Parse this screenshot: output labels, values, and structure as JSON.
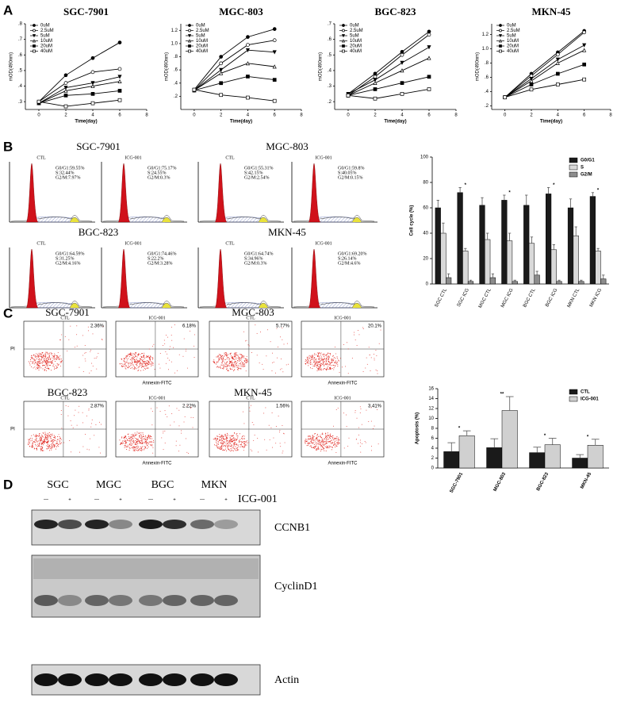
{
  "panels": [
    "A",
    "B",
    "C",
    "D"
  ],
  "chart_data": [
    {
      "type": "line",
      "title": "SGC-7901",
      "x_label": "Time(day)",
      "y_label": "mOD(490nm)",
      "x": [
        0,
        2,
        4,
        6
      ],
      "xlim": [
        -1,
        8
      ],
      "xticks": [
        0,
        2,
        4,
        6,
        8
      ],
      "ylim": [
        0.25,
        0.8
      ],
      "yticks": [
        {
          "value": 0.3,
          "label": ".3"
        },
        {
          "value": 0.4,
          "label": ".4"
        },
        {
          "value": 0.5,
          "label": ".5"
        },
        {
          "value": 0.6,
          "label": ".6"
        },
        {
          "value": 0.7,
          "label": ".7"
        },
        {
          "value": 0.8,
          "label": ".8"
        }
      ],
      "legend": "upper left",
      "series": [
        {
          "name": "0uM",
          "color": "#000000",
          "marker": "circle",
          "filled": true,
          "values": [
            0.3,
            0.47,
            0.58,
            0.68
          ]
        },
        {
          "name": "2.5uM",
          "color": "#000000",
          "marker": "circle",
          "filled": false,
          "values": [
            0.3,
            0.42,
            0.49,
            0.51
          ]
        },
        {
          "name": "5uM",
          "color": "#000000",
          "marker": "triangle-down",
          "filled": true,
          "values": [
            0.29,
            0.39,
            0.42,
            0.46
          ]
        },
        {
          "name": "10uM",
          "color": "#000000",
          "marker": "triangle",
          "filled": false,
          "values": [
            0.29,
            0.37,
            0.4,
            0.43
          ]
        },
        {
          "name": "20uM",
          "color": "#000000",
          "marker": "square",
          "filled": true,
          "values": [
            0.29,
            0.34,
            0.35,
            0.37
          ]
        },
        {
          "name": "40uM",
          "color": "#000000",
          "marker": "square",
          "filled": false,
          "values": [
            0.3,
            0.27,
            0.29,
            0.31
          ]
        }
      ]
    },
    {
      "type": "line",
      "title": "MGC-803",
      "x_label": "Time(day)",
      "y_label": "mOD(490nm)",
      "x": [
        0,
        2,
        4,
        6
      ],
      "xlim": [
        -1,
        8
      ],
      "xticks": [
        0,
        2,
        4,
        6,
        8
      ],
      "ylim": [
        0,
        1.3
      ],
      "yticks": [
        {
          "value": 0.2,
          "label": ".2"
        },
        {
          "value": 0.4,
          "label": ".4"
        },
        {
          "value": 0.6,
          "label": ".6"
        },
        {
          "value": 0.8,
          "label": ".8"
        },
        {
          "value": 1,
          "label": "1.0"
        },
        1.2
      ],
      "legend": "upper left",
      "series": [
        {
          "name": "0uM",
          "color": "#000000",
          "marker": "circle",
          "filled": true,
          "values": [
            0.3,
            0.8,
            1.1,
            1.22
          ]
        },
        {
          "name": "2.5uM",
          "color": "#000000",
          "marker": "circle",
          "filled": false,
          "values": [
            0.29,
            0.7,
            0.98,
            1.05
          ]
        },
        {
          "name": "5uM",
          "color": "#000000",
          "marker": "triangle-down",
          "filled": true,
          "values": [
            0.29,
            0.6,
            0.9,
            0.87
          ]
        },
        {
          "name": "10uM",
          "color": "#000000",
          "marker": "triangle",
          "filled": false,
          "values": [
            0.29,
            0.55,
            0.7,
            0.65
          ]
        },
        {
          "name": "20uM",
          "color": "#000000",
          "marker": "square",
          "filled": true,
          "values": [
            0.29,
            0.4,
            0.5,
            0.45
          ]
        },
        {
          "name": "40uM",
          "color": "#000000",
          "marker": "square",
          "filled": false,
          "values": [
            0.3,
            0.22,
            0.18,
            0.13
          ]
        }
      ]
    },
    {
      "type": "line",
      "title": "BGC-823",
      "x_label": "Time(day)",
      "y_label": "mOD(490nm)",
      "x": [
        0,
        2,
        4,
        6
      ],
      "xlim": [
        -1,
        8
      ],
      "xticks": [
        0,
        2,
        4,
        6,
        8
      ],
      "ylim": [
        0.15,
        0.7
      ],
      "yticks": [
        {
          "value": 0.2,
          "label": ".2"
        },
        {
          "value": 0.3,
          "label": ".3"
        },
        {
          "value": 0.4,
          "label": ".4"
        },
        {
          "value": 0.5,
          "label": ".5"
        },
        {
          "value": 0.6,
          "label": ".6"
        },
        {
          "value": 0.7,
          "label": ".7"
        }
      ],
      "legend": "upper left",
      "series": [
        {
          "name": "0uM",
          "color": "#000000",
          "marker": "circle",
          "filled": true,
          "values": [
            0.25,
            0.38,
            0.52,
            0.65
          ]
        },
        {
          "name": "2.5uM",
          "color": "#000000",
          "marker": "circle",
          "filled": false,
          "values": [
            0.24,
            0.36,
            0.5,
            0.63
          ]
        },
        {
          "name": "5uM",
          "color": "#000000",
          "marker": "triangle-down",
          "filled": true,
          "values": [
            0.25,
            0.34,
            0.45,
            0.55
          ]
        },
        {
          "name": "10uM",
          "color": "#000000",
          "marker": "triangle",
          "filled": false,
          "values": [
            0.24,
            0.32,
            0.4,
            0.48
          ]
        },
        {
          "name": "20uM",
          "color": "#000000",
          "marker": "square",
          "filled": true,
          "values": [
            0.24,
            0.28,
            0.32,
            0.36
          ]
        },
        {
          "name": "40uM",
          "color": "#000000",
          "marker": "square",
          "filled": false,
          "values": [
            0.24,
            0.22,
            0.25,
            0.28
          ]
        }
      ]
    },
    {
      "type": "line",
      "title": "MKN-45",
      "x_label": "Time(day)",
      "y_label": "mOD(490nm)",
      "x": [
        0,
        2,
        4,
        6
      ],
      "xlim": [
        -1,
        8
      ],
      "xticks": [
        0,
        2,
        4,
        6,
        8
      ],
      "ylim": [
        0.15,
        1.35
      ],
      "yticks": [
        {
          "value": 0.2,
          "label": ".2"
        },
        {
          "value": 0.4,
          "label": ".4"
        },
        {
          "value": 0.6,
          "label": ".6"
        },
        {
          "value": 0.8,
          "label": ".8"
        },
        {
          "value": 1,
          "label": "1.0"
        },
        1.2
      ],
      "legend": "upper left",
      "series": [
        {
          "name": "0uM",
          "color": "#000000",
          "marker": "circle",
          "filled": true,
          "values": [
            0.32,
            0.65,
            0.95,
            1.25
          ]
        },
        {
          "name": "2.5uM",
          "color": "#000000",
          "marker": "circle",
          "filled": false,
          "values": [
            0.32,
            0.62,
            0.92,
            1.23
          ]
        },
        {
          "name": "5uM",
          "color": "#000000",
          "marker": "triangle-down",
          "filled": true,
          "values": [
            0.32,
            0.58,
            0.85,
            1.05
          ]
        },
        {
          "name": "10uM",
          "color": "#000000",
          "marker": "triangle",
          "filled": false,
          "values": [
            0.32,
            0.55,
            0.8,
            0.98
          ]
        },
        {
          "name": "20uM",
          "color": "#000000",
          "marker": "square",
          "filled": true,
          "values": [
            0.32,
            0.5,
            0.65,
            0.78
          ]
        },
        {
          "name": "40uM",
          "color": "#000000",
          "marker": "square",
          "filled": false,
          "values": [
            0.32,
            0.43,
            0.5,
            0.57
          ]
        }
      ]
    },
    {
      "type": "bar",
      "y_label": "Cell cycle (%)",
      "categories": [
        "SGC CTL",
        "SGC ICG",
        "MGC CTL",
        "MGC ICG",
        "BGC CTL",
        "BGC ICG",
        "MKN CTL",
        "MKN ICG"
      ],
      "ylim": [
        0,
        100
      ],
      "yticks": [
        0,
        20,
        40,
        60,
        80,
        100
      ],
      "legend": "upper right",
      "series": [
        {
          "name": "G0/G1",
          "color": "#1a1a1a",
          "values": [
            60,
            72,
            62,
            66,
            62,
            71,
            60,
            69
          ],
          "errors": [
            6,
            4,
            6,
            4,
            8,
            5,
            7,
            3
          ]
        },
        {
          "name": "S",
          "color": "#d9d9d9",
          "values": [
            40,
            26,
            35,
            34,
            32,
            27,
            38,
            26
          ],
          "errors": [
            8,
            2,
            5,
            6,
            5,
            4,
            7,
            2
          ]
        },
        {
          "name": "G2/M",
          "color": "#8c8c8c",
          "values": [
            5,
            2,
            5,
            2,
            7,
            2,
            2,
            4
          ],
          "errors": [
            3,
            1,
            3,
            1,
            3,
            1,
            1,
            3
          ]
        }
      ],
      "annotations": [
        {
          "text": "*",
          "category": "SGC ICG"
        },
        {
          "text": "*",
          "category": "MGC ICG"
        },
        {
          "text": "*",
          "category": "BGC ICG"
        },
        {
          "text": "*",
          "category": "MKN ICG"
        }
      ]
    },
    {
      "type": "bar",
      "y_label": "Apoptosis (%)",
      "categories": [
        "SGC-7901",
        "MGC-803",
        "BGC-823",
        "MKN-45"
      ],
      "ylim": [
        0,
        16
      ],
      "yticks": [
        0,
        2,
        4,
        6,
        8,
        10,
        12,
        14,
        16
      ],
      "legend": "upper right",
      "series": [
        {
          "name": "CTL",
          "color": "#1a1a1a",
          "values": [
            3.3,
            4.1,
            3.1,
            2.0
          ],
          "errors": [
            1.8,
            1.8,
            1.1,
            0.7
          ]
        },
        {
          "name": "ICG-001",
          "color": "#d0d0d0",
          "values": [
            6.5,
            11.6,
            4.7,
            4.6
          ],
          "errors": [
            1.0,
            2.8,
            1.3,
            1.2
          ]
        }
      ],
      "annotations": [
        {
          "text": "*",
          "category": "SGC-7901"
        },
        {
          "text": "**",
          "category": "MGC-803"
        },
        {
          "text": "*",
          "category": "BGC-823"
        },
        {
          "text": "*",
          "category": "MKN-45"
        }
      ]
    }
  ],
  "flow": {
    "groups": [
      {
        "title": "SGC-7901",
        "plots": [
          {
            "label": "CTL",
            "stats": [
              "G0/G1:59.55%",
              "S:32.44%",
              "G2/M:7.97%"
            ]
          },
          {
            "label": "ICG-001",
            "stats": [
              "G0/G1:75.17%",
              "S:24.55%",
              "G2/M:0.3%"
            ]
          }
        ]
      },
      {
        "title": "MGC-803",
        "plots": [
          {
            "label": "CTL",
            "stats": [
              "G0/G1:55.31%",
              "S:42.15%",
              "G2/M:2.54%"
            ]
          },
          {
            "label": "ICG-001",
            "stats": [
              "G0/G1:59.8%",
              "S:40.05%",
              "G2/M:0.15%"
            ]
          }
        ]
      },
      {
        "title": "BGC-823",
        "plots": [
          {
            "label": "CTL",
            "stats": [
              "G0/G1:64.59%",
              "S:31.25%",
              "G2/M:4.16%"
            ]
          },
          {
            "label": "ICG-001",
            "stats": [
              "G0/G1:74.46%",
              "S:22.2%",
              "G2/M:3.28%"
            ]
          }
        ]
      },
      {
        "title": "MKN-45",
        "plots": [
          {
            "label": "CTL",
            "stats": [
              "G0/G1:64.74%",
              "S:34.96%",
              "G2/M:0.3%"
            ]
          },
          {
            "label": "ICG-001",
            "stats": [
              "G0/G1:69.20%",
              "S:26.14%",
              "G2/M:4.6%"
            ]
          }
        ]
      }
    ]
  },
  "apoptosis": {
    "x_label": "Annexin-FITC",
    "y_label": "PI",
    "groups": [
      {
        "title": "SGC-7901",
        "plots": [
          {
            "label": "CTL",
            "q2": "2.36%"
          },
          {
            "label": "ICG-001",
            "q2": "6.18%"
          }
        ]
      },
      {
        "title": "MGC-803",
        "plots": [
          {
            "label": "CTL",
            "q2": "5.77%"
          },
          {
            "label": "ICG-001",
            "q2": "20.1%"
          }
        ]
      },
      {
        "title": "BGC-823",
        "plots": [
          {
            "label": "CTL",
            "q2": "2.87%"
          },
          {
            "label": "ICG-001",
            "q2": "2.22%"
          }
        ]
      },
      {
        "title": "MKN-45",
        "plots": [
          {
            "label": "CTL",
            "q2": "1.56%"
          },
          {
            "label": "ICG-001",
            "q2": "3.41%"
          }
        ]
      }
    ]
  },
  "western": {
    "cells": [
      "SGC",
      "MGC",
      "BGC",
      "MKN"
    ],
    "minus": "—",
    "plus": "+",
    "treatment": "ICG-001",
    "bands": [
      "CCNB1",
      "CyclinD1",
      "Actin"
    ]
  }
}
